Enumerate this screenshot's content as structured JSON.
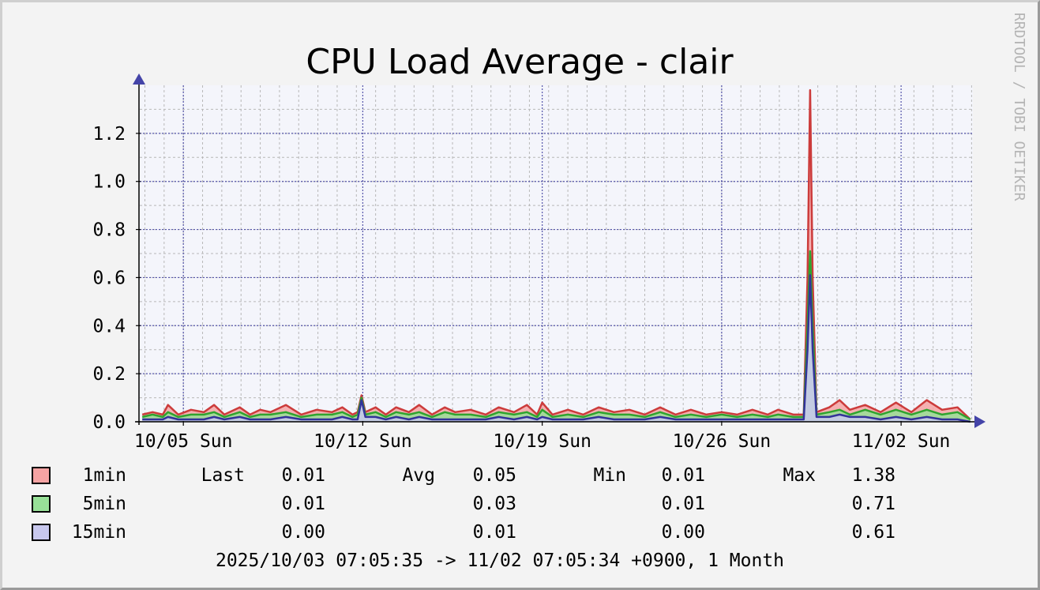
{
  "watermark": "RRDTOOL / TOBI OETIKER",
  "chart_data": {
    "type": "line",
    "title": "CPU Load Average - clair",
    "xlabel": "",
    "ylabel": "",
    "ylim": [
      0,
      1.4
    ],
    "y_ticks": [
      0.0,
      0.2,
      0.4,
      0.6,
      0.8,
      1.0,
      1.2
    ],
    "y_tick_labels": [
      "0.0",
      "0.2",
      "0.4",
      "0.6",
      "0.8",
      "1.0",
      "1.2"
    ],
    "x_range_days": [
      -1.7,
      30.8
    ],
    "x_ticks": [
      {
        "day": 0,
        "label": "10/05 Sun"
      },
      {
        "day": 7,
        "label": "10/12 Sun"
      },
      {
        "day": 14,
        "label": "10/19 Sun"
      },
      {
        "day": 21,
        "label": "10/26 Sun"
      },
      {
        "day": 28,
        "label": "11/02 Sun"
      }
    ],
    "grid": true,
    "series": [
      {
        "name": "1min",
        "line_color": "#cc3b3b",
        "fill_color": "#f5a3a3",
        "points": [
          [
            -1.6,
            0.03
          ],
          [
            -1.2,
            0.04
          ],
          [
            -0.8,
            0.03
          ],
          [
            -0.6,
            0.07
          ],
          [
            -0.2,
            0.03
          ],
          [
            0.3,
            0.05
          ],
          [
            0.8,
            0.04
          ],
          [
            1.2,
            0.07
          ],
          [
            1.6,
            0.03
          ],
          [
            2.2,
            0.06
          ],
          [
            2.6,
            0.03
          ],
          [
            3.0,
            0.05
          ],
          [
            3.4,
            0.04
          ],
          [
            4.0,
            0.07
          ],
          [
            4.6,
            0.03
          ],
          [
            5.2,
            0.05
          ],
          [
            5.8,
            0.04
          ],
          [
            6.2,
            0.06
          ],
          [
            6.6,
            0.03
          ],
          [
            6.8,
            0.04
          ],
          [
            6.95,
            0.11
          ],
          [
            7.1,
            0.04
          ],
          [
            7.5,
            0.06
          ],
          [
            7.9,
            0.03
          ],
          [
            8.3,
            0.06
          ],
          [
            8.8,
            0.04
          ],
          [
            9.2,
            0.07
          ],
          [
            9.7,
            0.03
          ],
          [
            10.2,
            0.06
          ],
          [
            10.6,
            0.04
          ],
          [
            11.2,
            0.05
          ],
          [
            11.8,
            0.03
          ],
          [
            12.3,
            0.06
          ],
          [
            12.9,
            0.04
          ],
          [
            13.4,
            0.07
          ],
          [
            13.8,
            0.03
          ],
          [
            14.0,
            0.08
          ],
          [
            14.4,
            0.03
          ],
          [
            15.0,
            0.05
          ],
          [
            15.6,
            0.03
          ],
          [
            16.2,
            0.06
          ],
          [
            16.8,
            0.04
          ],
          [
            17.4,
            0.05
          ],
          [
            18.0,
            0.03
          ],
          [
            18.6,
            0.06
          ],
          [
            19.2,
            0.03
          ],
          [
            19.8,
            0.05
          ],
          [
            20.4,
            0.03
          ],
          [
            21.0,
            0.04
          ],
          [
            21.6,
            0.03
          ],
          [
            22.2,
            0.05
          ],
          [
            22.8,
            0.03
          ],
          [
            23.2,
            0.05
          ],
          [
            23.8,
            0.03
          ],
          [
            24.2,
            0.03
          ],
          [
            24.35,
            0.6
          ],
          [
            24.45,
            1.38
          ],
          [
            24.55,
            0.6
          ],
          [
            24.7,
            0.04
          ],
          [
            25.2,
            0.06
          ],
          [
            25.6,
            0.09
          ],
          [
            26.0,
            0.05
          ],
          [
            26.6,
            0.07
          ],
          [
            27.2,
            0.04
          ],
          [
            27.8,
            0.08
          ],
          [
            28.4,
            0.04
          ],
          [
            29.0,
            0.09
          ],
          [
            29.6,
            0.05
          ],
          [
            30.2,
            0.06
          ],
          [
            30.7,
            0.01
          ]
        ]
      },
      {
        "name": "5min",
        "line_color": "#2fa42f",
        "fill_color": "#98e098",
        "points": [
          [
            -1.6,
            0.02
          ],
          [
            -1.2,
            0.03
          ],
          [
            -0.8,
            0.02
          ],
          [
            -0.6,
            0.04
          ],
          [
            -0.2,
            0.02
          ],
          [
            0.3,
            0.03
          ],
          [
            0.8,
            0.03
          ],
          [
            1.2,
            0.04
          ],
          [
            1.6,
            0.02
          ],
          [
            2.2,
            0.04
          ],
          [
            2.6,
            0.02
          ],
          [
            3.0,
            0.03
          ],
          [
            3.4,
            0.03
          ],
          [
            4.0,
            0.04
          ],
          [
            4.6,
            0.02
          ],
          [
            5.2,
            0.03
          ],
          [
            5.8,
            0.03
          ],
          [
            6.2,
            0.04
          ],
          [
            6.6,
            0.02
          ],
          [
            6.8,
            0.03
          ],
          [
            6.95,
            0.1
          ],
          [
            7.1,
            0.03
          ],
          [
            7.5,
            0.04
          ],
          [
            7.9,
            0.02
          ],
          [
            8.3,
            0.04
          ],
          [
            8.8,
            0.03
          ],
          [
            9.2,
            0.04
          ],
          [
            9.7,
            0.02
          ],
          [
            10.2,
            0.04
          ],
          [
            10.6,
            0.03
          ],
          [
            11.2,
            0.03
          ],
          [
            11.8,
            0.02
          ],
          [
            12.3,
            0.04
          ],
          [
            12.9,
            0.03
          ],
          [
            13.4,
            0.04
          ],
          [
            13.8,
            0.02
          ],
          [
            14.0,
            0.05
          ],
          [
            14.4,
            0.02
          ],
          [
            15.0,
            0.03
          ],
          [
            15.6,
            0.02
          ],
          [
            16.2,
            0.04
          ],
          [
            16.8,
            0.03
          ],
          [
            17.4,
            0.03
          ],
          [
            18.0,
            0.02
          ],
          [
            18.6,
            0.04
          ],
          [
            19.2,
            0.02
          ],
          [
            19.8,
            0.03
          ],
          [
            20.4,
            0.02
          ],
          [
            21.0,
            0.03
          ],
          [
            21.6,
            0.02
          ],
          [
            22.2,
            0.03
          ],
          [
            22.8,
            0.02
          ],
          [
            23.2,
            0.03
          ],
          [
            23.8,
            0.02
          ],
          [
            24.2,
            0.02
          ],
          [
            24.35,
            0.4
          ],
          [
            24.45,
            0.71
          ],
          [
            24.55,
            0.4
          ],
          [
            24.7,
            0.03
          ],
          [
            25.2,
            0.04
          ],
          [
            25.6,
            0.05
          ],
          [
            26.0,
            0.03
          ],
          [
            26.6,
            0.05
          ],
          [
            27.2,
            0.03
          ],
          [
            27.8,
            0.05
          ],
          [
            28.4,
            0.03
          ],
          [
            29.0,
            0.05
          ],
          [
            29.6,
            0.03
          ],
          [
            30.2,
            0.04
          ],
          [
            30.7,
            0.01
          ]
        ]
      },
      {
        "name": "15min",
        "line_color": "#33339a",
        "fill_color": "#c8c8ee",
        "points": [
          [
            -1.6,
            0.01
          ],
          [
            -1.2,
            0.01
          ],
          [
            -0.8,
            0.01
          ],
          [
            -0.6,
            0.02
          ],
          [
            -0.2,
            0.01
          ],
          [
            0.3,
            0.01
          ],
          [
            0.8,
            0.01
          ],
          [
            1.2,
            0.02
          ],
          [
            1.6,
            0.01
          ],
          [
            2.2,
            0.02
          ],
          [
            2.6,
            0.01
          ],
          [
            3.0,
            0.01
          ],
          [
            3.4,
            0.01
          ],
          [
            4.0,
            0.02
          ],
          [
            4.6,
            0.01
          ],
          [
            5.2,
            0.01
          ],
          [
            5.8,
            0.01
          ],
          [
            6.2,
            0.02
          ],
          [
            6.6,
            0.01
          ],
          [
            6.8,
            0.01
          ],
          [
            6.95,
            0.09
          ],
          [
            7.1,
            0.02
          ],
          [
            7.5,
            0.02
          ],
          [
            7.9,
            0.01
          ],
          [
            8.3,
            0.02
          ],
          [
            8.8,
            0.01
          ],
          [
            9.2,
            0.02
          ],
          [
            9.7,
            0.01
          ],
          [
            10.2,
            0.01
          ],
          [
            10.6,
            0.01
          ],
          [
            11.2,
            0.01
          ],
          [
            11.8,
            0.01
          ],
          [
            12.3,
            0.02
          ],
          [
            12.9,
            0.01
          ],
          [
            13.4,
            0.02
          ],
          [
            13.8,
            0.01
          ],
          [
            14.0,
            0.02
          ],
          [
            14.4,
            0.01
          ],
          [
            15.0,
            0.01
          ],
          [
            15.6,
            0.01
          ],
          [
            16.2,
            0.02
          ],
          [
            16.8,
            0.01
          ],
          [
            17.4,
            0.01
          ],
          [
            18.0,
            0.01
          ],
          [
            18.6,
            0.02
          ],
          [
            19.2,
            0.01
          ],
          [
            19.8,
            0.01
          ],
          [
            20.4,
            0.01
          ],
          [
            21.0,
            0.01
          ],
          [
            21.6,
            0.01
          ],
          [
            22.2,
            0.01
          ],
          [
            22.8,
            0.01
          ],
          [
            23.2,
            0.01
          ],
          [
            23.8,
            0.01
          ],
          [
            24.2,
            0.01
          ],
          [
            24.35,
            0.3
          ],
          [
            24.45,
            0.61
          ],
          [
            24.55,
            0.3
          ],
          [
            24.7,
            0.02
          ],
          [
            25.2,
            0.02
          ],
          [
            25.6,
            0.03
          ],
          [
            26.0,
            0.02
          ],
          [
            26.6,
            0.02
          ],
          [
            27.2,
            0.01
          ],
          [
            27.8,
            0.02
          ],
          [
            28.4,
            0.01
          ],
          [
            29.0,
            0.02
          ],
          [
            29.6,
            0.01
          ],
          [
            30.2,
            0.01
          ],
          [
            30.7,
            0.0
          ]
        ]
      }
    ]
  },
  "legend": {
    "headers": {
      "last": "Last",
      "avg": "Avg",
      "min": "Min",
      "max": "Max"
    },
    "rows": [
      {
        "name": "1min",
        "color": "#f5a3a3",
        "last": "0.01",
        "avg": "0.05",
        "min": "0.01",
        "max": "1.38"
      },
      {
        "name": "5min",
        "color": "#98e098",
        "last": "0.01",
        "avg": "0.03",
        "min": "0.01",
        "max": "0.71"
      },
      {
        "name": "15min",
        "color": "#c8c8ee",
        "last": "0.00",
        "avg": "0.01",
        "min": "0.00",
        "max": "0.61"
      }
    ]
  },
  "footer": "2025/10/03 07:05:35 -> 11/02 07:05:34 +0900, 1 Month"
}
